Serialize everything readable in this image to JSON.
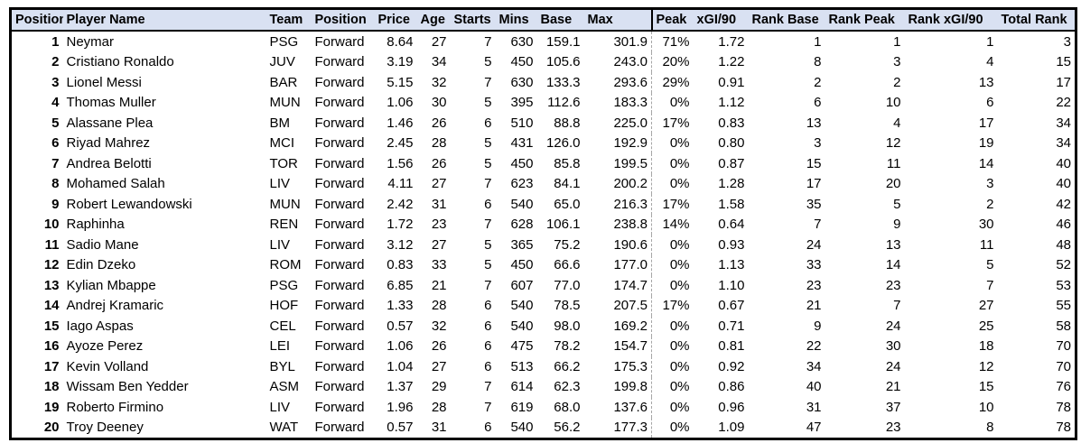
{
  "table": {
    "columns": [
      {
        "key": "position_rank",
        "label": "Position"
      },
      {
        "key": "player_name",
        "label": "Player Name"
      },
      {
        "key": "team",
        "label": "Team"
      },
      {
        "key": "position",
        "label": "Position"
      },
      {
        "key": "price",
        "label": "Price"
      },
      {
        "key": "age",
        "label": "Age"
      },
      {
        "key": "starts",
        "label": "Starts"
      },
      {
        "key": "mins",
        "label": "Mins"
      },
      {
        "key": "base",
        "label": "Base"
      },
      {
        "key": "max",
        "label": "Max"
      },
      {
        "key": "peak",
        "label": "Peak"
      },
      {
        "key": "xgi_per_90",
        "label": "xGI/90"
      },
      {
        "key": "rank_base",
        "label": "Rank Base"
      },
      {
        "key": "rank_peak",
        "label": "Rank Peak"
      },
      {
        "key": "rank_xgi_90",
        "label": "Rank xGI/90"
      },
      {
        "key": "total_rank",
        "label": "Total Rank"
      }
    ],
    "rows": [
      [
        "1",
        "Neymar",
        "PSG",
        "Forward",
        "8.64",
        "27",
        "7",
        "630",
        "159.1",
        "301.9",
        "71%",
        "1.72",
        "1",
        "1",
        "1",
        "3"
      ],
      [
        "2",
        "Cristiano Ronaldo",
        "JUV",
        "Forward",
        "3.19",
        "34",
        "5",
        "450",
        "105.6",
        "243.0",
        "20%",
        "1.22",
        "8",
        "3",
        "4",
        "15"
      ],
      [
        "3",
        "Lionel Messi",
        "BAR",
        "Forward",
        "5.15",
        "32",
        "7",
        "630",
        "133.3",
        "293.6",
        "29%",
        "0.91",
        "2",
        "2",
        "13",
        "17"
      ],
      [
        "4",
        "Thomas Muller",
        "MUN",
        "Forward",
        "1.06",
        "30",
        "5",
        "395",
        "112.6",
        "183.3",
        "0%",
        "1.12",
        "6",
        "10",
        "6",
        "22"
      ],
      [
        "5",
        "Alassane Plea",
        "BM",
        "Forward",
        "1.46",
        "26",
        "6",
        "510",
        "88.8",
        "225.0",
        "17%",
        "0.83",
        "13",
        "4",
        "17",
        "34"
      ],
      [
        "6",
        "Riyad Mahrez",
        "MCI",
        "Forward",
        "2.45",
        "28",
        "5",
        "431",
        "126.0",
        "192.9",
        "0%",
        "0.80",
        "3",
        "12",
        "19",
        "34"
      ],
      [
        "7",
        "Andrea Belotti",
        "TOR",
        "Forward",
        "1.56",
        "26",
        "5",
        "450",
        "85.8",
        "199.5",
        "0%",
        "0.87",
        "15",
        "11",
        "14",
        "40"
      ],
      [
        "8",
        "Mohamed Salah",
        "LIV",
        "Forward",
        "4.11",
        "27",
        "7",
        "623",
        "84.1",
        "200.2",
        "0%",
        "1.28",
        "17",
        "20",
        "3",
        "40"
      ],
      [
        "9",
        "Robert Lewandowski",
        "MUN",
        "Forward",
        "2.42",
        "31",
        "6",
        "540",
        "65.0",
        "216.3",
        "17%",
        "1.58",
        "35",
        "5",
        "2",
        "42"
      ],
      [
        "10",
        "Raphinha",
        "REN",
        "Forward",
        "1.72",
        "23",
        "7",
        "628",
        "106.1",
        "238.8",
        "14%",
        "0.64",
        "7",
        "9",
        "30",
        "46"
      ],
      [
        "11",
        "Sadio Mane",
        "LIV",
        "Forward",
        "3.12",
        "27",
        "5",
        "365",
        "75.2",
        "190.6",
        "0%",
        "0.93",
        "24",
        "13",
        "11",
        "48"
      ],
      [
        "12",
        "Edin Dzeko",
        "ROM",
        "Forward",
        "0.83",
        "33",
        "5",
        "450",
        "66.6",
        "177.0",
        "0%",
        "1.13",
        "33",
        "14",
        "5",
        "52"
      ],
      [
        "13",
        "Kylian Mbappe",
        "PSG",
        "Forward",
        "6.85",
        "21",
        "7",
        "607",
        "77.0",
        "174.7",
        "0%",
        "1.10",
        "23",
        "23",
        "7",
        "53"
      ],
      [
        "14",
        "Andrej Kramaric",
        "HOF",
        "Forward",
        "1.33",
        "28",
        "6",
        "540",
        "78.5",
        "207.5",
        "17%",
        "0.67",
        "21",
        "7",
        "27",
        "55"
      ],
      [
        "15",
        "Iago Aspas",
        "CEL",
        "Forward",
        "0.57",
        "32",
        "6",
        "540",
        "98.0",
        "169.2",
        "0%",
        "0.71",
        "9",
        "24",
        "25",
        "58"
      ],
      [
        "16",
        "Ayoze Perez",
        "LEI",
        "Forward",
        "1.06",
        "26",
        "6",
        "475",
        "78.2",
        "154.7",
        "0%",
        "0.81",
        "22",
        "30",
        "18",
        "70"
      ],
      [
        "17",
        "Kevin Volland",
        "BYL",
        "Forward",
        "1.04",
        "27",
        "6",
        "513",
        "66.2",
        "175.3",
        "0%",
        "0.92",
        "34",
        "24",
        "12",
        "70"
      ],
      [
        "18",
        "Wissam Ben Yedder",
        "ASM",
        "Forward",
        "1.37",
        "29",
        "7",
        "614",
        "62.3",
        "199.8",
        "0%",
        "0.86",
        "40",
        "21",
        "15",
        "76"
      ],
      [
        "19",
        "Roberto Firmino",
        "LIV",
        "Forward",
        "1.96",
        "28",
        "7",
        "619",
        "68.0",
        "137.6",
        "0%",
        "0.96",
        "31",
        "37",
        "10",
        "78"
      ],
      [
        "20",
        "Troy Deeney",
        "WAT",
        "Forward",
        "0.57",
        "31",
        "6",
        "540",
        "56.2",
        "177.3",
        "0%",
        "1.09",
        "47",
        "23",
        "8",
        "78"
      ]
    ]
  },
  "colors": {
    "header_background": "#D9E1F2",
    "table_border": "#000000",
    "page_break_line": "#A6A6A6",
    "text": "#000000"
  }
}
